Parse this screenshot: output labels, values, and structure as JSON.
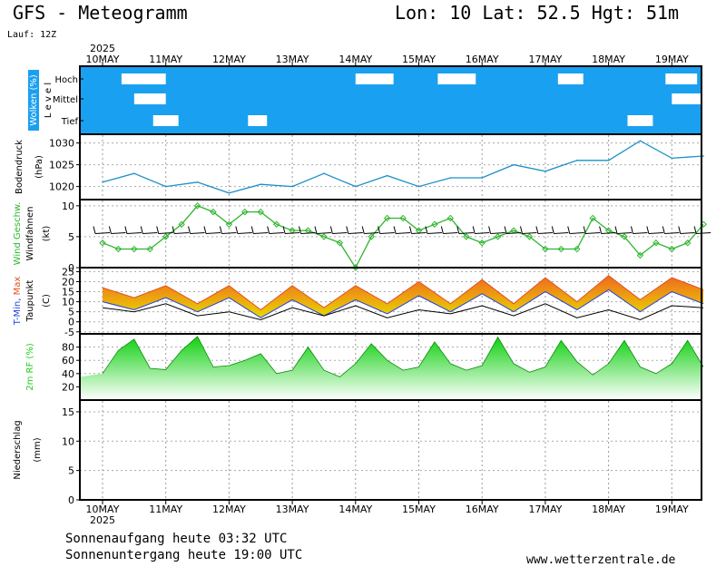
{
  "header": {
    "title": "GFS - Meteogramm",
    "coords": "Lon: 10 Lat: 52.5 Hgt: 51m",
    "run": "Lauf: 12Z",
    "year": "2025"
  },
  "footer": {
    "sunrise": "Sonnenaufgang heute 03:32 UTC",
    "sunset": "Sonnenuntergang heute 19:00 UTC",
    "credit": "www.wetterzentrale.de"
  },
  "chart_data": [
    {
      "type": "heatmap",
      "panel": "clouds",
      "ylabel": "Wolken (%)",
      "levels_label": "L e v e l",
      "levels": [
        "Hoch",
        "Mittel",
        "Tief"
      ],
      "days": [
        "10MAY",
        "11MAY",
        "12MAY",
        "13MAY",
        "14MAY",
        "15MAY",
        "16MAY",
        "17MAY",
        "18MAY",
        "19MAY"
      ],
      "colors": {
        "cloud": "#1aa0f0",
        "clear": "#ffffff"
      },
      "clear_gaps": [
        {
          "level": "Hoch",
          "start_day": 0.3,
          "end_day": 1.0
        },
        {
          "level": "Hoch",
          "start_day": 4.0,
          "end_day": 4.6
        },
        {
          "level": "Hoch",
          "start_day": 5.3,
          "end_day": 5.9
        },
        {
          "level": "Hoch",
          "start_day": 7.2,
          "end_day": 7.6
        },
        {
          "level": "Hoch",
          "start_day": 8.9,
          "end_day": 9.4
        },
        {
          "level": "Mittel",
          "start_day": 0.5,
          "end_day": 1.0
        },
        {
          "level": "Mittel",
          "start_day": 9.0,
          "end_day": 9.6
        },
        {
          "level": "Tief",
          "start_day": 0.8,
          "end_day": 1.2
        },
        {
          "level": "Tief",
          "start_day": 2.3,
          "end_day": 2.6
        },
        {
          "level": "Tief",
          "start_day": 8.3,
          "end_day": 8.7
        },
        {
          "level": "Tief",
          "start_day": 9.5,
          "end_day": 9.7
        }
      ]
    },
    {
      "type": "line",
      "panel": "pressure",
      "ylabel": "Bodendruck",
      "unit": "(hPa)",
      "yticks": [
        1020,
        1025,
        1030
      ],
      "ylim": [
        1017,
        1032
      ],
      "color": "#1e90c8",
      "series": [
        {
          "x": [
            0,
            0.5,
            1,
            1.5,
            2,
            2.5,
            3,
            3.5,
            4,
            4.5,
            5,
            5.5,
            6,
            6.5,
            7,
            7.5,
            8,
            8.5,
            9,
            9.5
          ],
          "values": [
            1021,
            1023,
            1020,
            1021,
            1018.5,
            1020.5,
            1020,
            1023,
            1020,
            1022.5,
            1020,
            1022,
            1022,
            1025,
            1023.5,
            1026,
            1026,
            1030.5,
            1026.5,
            1027
          ]
        }
      ]
    },
    {
      "type": "line",
      "panel": "wind",
      "ylabel": "Wind Geschw.",
      "ylabel2": "Windfahnen",
      "unit": "(kt)",
      "yticks": [
        0,
        5,
        10
      ],
      "ylim": [
        0,
        11
      ],
      "color": "#2db42d",
      "series": [
        {
          "name": "Wind Geschw.",
          "x": [
            0,
            0.25,
            0.5,
            0.75,
            1,
            1.25,
            1.5,
            1.75,
            2,
            2.25,
            2.5,
            2.75,
            3,
            3.25,
            3.5,
            3.75,
            4,
            4.25,
            4.5,
            4.75,
            5,
            5.25,
            5.5,
            5.75,
            6,
            6.25,
            6.5,
            6.75,
            7,
            7.25,
            7.5,
            7.75,
            8,
            8.25,
            8.5,
            8.75,
            9,
            9.25,
            9.5
          ],
          "values": [
            4,
            3,
            3,
            3,
            5,
            7,
            10,
            9,
            7,
            9,
            9,
            7,
            6,
            6,
            5,
            4,
            0,
            5,
            8,
            8,
            6,
            7,
            8,
            5,
            4,
            5,
            6,
            5,
            3,
            3,
            3,
            8,
            6,
            5,
            2,
            4,
            3,
            4,
            7
          ]
        }
      ]
    },
    {
      "type": "area",
      "panel": "temperature",
      "ylabel": "T-Min, Max",
      "ylabel2": "Taupunkt",
      "unit": "(C)",
      "yticks": [
        -5,
        0,
        5,
        10,
        15,
        20,
        25
      ],
      "ylim": [
        -6,
        27
      ],
      "colors": {
        "tmax": "#e05020",
        "tmin": "#2040e0",
        "fill_warm": "#f08020",
        "fill_cool": "#d8d000",
        "dewpoint": "#000000"
      },
      "series": [
        {
          "name": "T-Max",
          "x": [
            0,
            0.5,
            1,
            1.5,
            2,
            2.5,
            3,
            3.5,
            4,
            4.5,
            5,
            5.5,
            6,
            6.5,
            7,
            7.5,
            8,
            8.5,
            9,
            9.5
          ],
          "values": [
            17,
            12,
            18,
            9,
            18,
            6,
            18,
            7,
            18,
            9,
            20,
            9,
            21,
            9,
            22,
            10,
            23,
            11,
            22,
            16
          ]
        },
        {
          "name": "T-Min",
          "x": [
            0,
            0.5,
            1,
            1.5,
            2,
            2.5,
            3,
            3.5,
            4,
            4.5,
            5,
            5.5,
            6,
            6.5,
            7,
            7.5,
            8,
            8.5,
            9,
            9.5
          ],
          "values": [
            10,
            6,
            12,
            5,
            12,
            2,
            11,
            3,
            11,
            4,
            13,
            5,
            14,
            5,
            15,
            6,
            16,
            5,
            15,
            9
          ]
        },
        {
          "name": "Taupunkt",
          "x": [
            0,
            0.5,
            1,
            1.5,
            2,
            2.5,
            3,
            3.5,
            4,
            4.5,
            5,
            5.5,
            6,
            6.5,
            7,
            7.5,
            8,
            8.5,
            9,
            9.5
          ],
          "values": [
            7,
            5,
            9,
            3,
            5,
            1,
            7,
            3,
            8,
            2,
            6,
            4,
            8,
            3,
            9,
            2,
            6,
            1,
            8,
            7
          ]
        }
      ]
    },
    {
      "type": "area",
      "panel": "humidity",
      "ylabel": "2m RF (%)",
      "yticks": [
        20,
        40,
        60,
        80
      ],
      "ylim": [
        0,
        100
      ],
      "color": "#22cc22",
      "series": [
        {
          "x": [
            0,
            0.25,
            0.5,
            0.75,
            1,
            1.25,
            1.5,
            1.75,
            2,
            2.25,
            2.5,
            2.75,
            3,
            3.25,
            3.5,
            3.75,
            4,
            4.25,
            4.5,
            4.75,
            5,
            5.25,
            5.5,
            5.75,
            6,
            6.25,
            6.5,
            6.75,
            7,
            7.25,
            7.5,
            7.75,
            8,
            8.25,
            8.5,
            8.75,
            9,
            9.25,
            9.5
          ],
          "values": [
            40,
            75,
            92,
            48,
            46,
            75,
            96,
            50,
            52,
            60,
            70,
            40,
            45,
            80,
            45,
            35,
            55,
            85,
            60,
            45,
            50,
            88,
            55,
            45,
            52,
            95,
            55,
            42,
            50,
            90,
            58,
            38,
            55,
            90,
            50,
            40,
            55,
            90,
            50
          ]
        }
      ]
    },
    {
      "type": "bar",
      "panel": "precipitation",
      "ylabel": "Niederschlag",
      "unit": "(mm)",
      "yticks": [
        0,
        5,
        10,
        15
      ],
      "ylim": [
        0,
        17
      ],
      "values": []
    }
  ]
}
